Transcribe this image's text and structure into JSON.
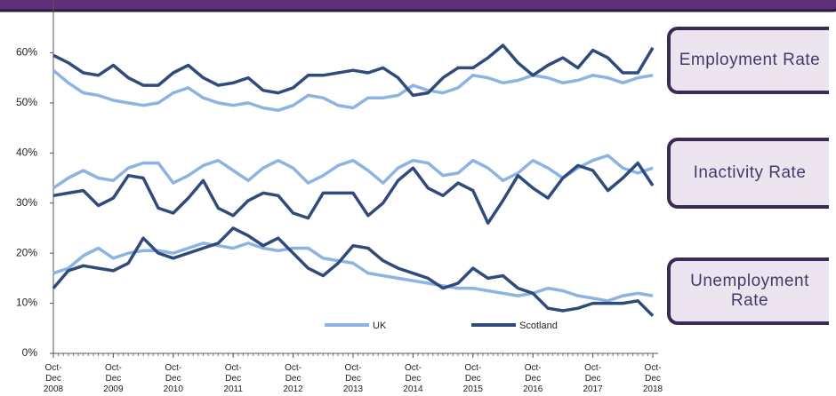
{
  "chart_data": {
    "type": "line",
    "categories": [
      "Oct-Dec 2008",
      null,
      null,
      null,
      "Oct-Dec 2009",
      null,
      null,
      null,
      "Oct-Dec 2010",
      null,
      null,
      null,
      "Oct-Dec 2011",
      null,
      null,
      null,
      "Oct-Dec 2012",
      null,
      null,
      null,
      "Oct-Dec 2013",
      null,
      null,
      null,
      "Oct-Dec 2014",
      null,
      null,
      null,
      "Oct-Dec 2015",
      null,
      null,
      null,
      "Oct-Dec 2016",
      null,
      null,
      null,
      "Oct-Dec 2017",
      null,
      null,
      null,
      "Oct-Dec 2018"
    ],
    "series": [
      {
        "name": "UK",
        "color": "#8db3e2",
        "values": [
          [
            56.5,
            54,
            52,
            51.5,
            50.5,
            50,
            49.5,
            50,
            52,
            53,
            51,
            50,
            49.5,
            50,
            49,
            48.5,
            49.5,
            51.5,
            51,
            49.5,
            49,
            51,
            51,
            51.5,
            53.5,
            52.5,
            52,
            53,
            55.5,
            55,
            54,
            54.5,
            55.5,
            55,
            54,
            54.5,
            55.5,
            55,
            54,
            55,
            55.5
          ],
          [
            33,
            35,
            36.5,
            35,
            34.5,
            37,
            38,
            38,
            34,
            35.5,
            37.5,
            38.5,
            36.5,
            34.5,
            37,
            38.5,
            37,
            34,
            35.5,
            37.5,
            38.5,
            36.5,
            34,
            37,
            38.5,
            38,
            35.5,
            36,
            38.5,
            37,
            34.5,
            36,
            38.5,
            37,
            35,
            37,
            38.5,
            39.5,
            37,
            36,
            37
          ],
          [
            16,
            17,
            19.5,
            21,
            19,
            20,
            20.5,
            20.5,
            20,
            21,
            22,
            21.5,
            21,
            22,
            21,
            20.5,
            21,
            21,
            19,
            18.5,
            18,
            16,
            15.5,
            15,
            14.5,
            14,
            13.5,
            13,
            13,
            12.5,
            12,
            11.5,
            12,
            13,
            12.5,
            11.5,
            11,
            10.5,
            11.5,
            12,
            11.5
          ]
        ]
      },
      {
        "name": "Scotland",
        "color": "#2f4b7c",
        "values": [
          [
            59.5,
            58,
            56,
            55.5,
            57.5,
            55,
            53.5,
            53.5,
            56,
            57.5,
            55,
            53.5,
            54,
            55,
            52.5,
            52,
            53,
            55.5,
            55.5,
            56,
            56.5,
            56,
            57,
            55,
            51.5,
            52,
            55,
            57,
            57,
            59,
            61.5,
            58,
            55.5,
            57.5,
            59,
            57,
            60.5,
            59,
            56,
            56,
            61
          ],
          [
            31.5,
            32,
            32.5,
            29.5,
            31,
            35.5,
            35,
            29,
            28,
            31,
            34.5,
            29,
            27.5,
            30.5,
            32,
            31.5,
            28,
            27,
            32,
            32,
            32,
            27.5,
            30,
            34.5,
            37,
            33,
            31.5,
            34,
            32.5,
            26,
            30.5,
            35.5,
            33,
            31,
            35,
            37.5,
            36.5,
            32.5,
            35,
            38,
            33.5
          ],
          [
            13,
            16.5,
            17.5,
            17,
            16.5,
            18,
            23,
            20,
            19,
            20,
            21,
            22,
            25,
            23.5,
            21.5,
            23,
            20,
            17,
            15.5,
            18,
            21.5,
            21,
            18.5,
            17,
            16,
            15,
            13,
            14,
            17,
            15,
            15.5,
            13,
            12,
            9,
            8.5,
            9,
            10,
            10,
            10,
            10.5,
            7.5
          ]
        ]
      }
    ],
    "annotations": [
      "Employment Rate",
      "Inactivity Rate",
      "Unemployment Rate"
    ],
    "ylim": [
      0,
      70
    ],
    "yticks": [
      {
        "value": 0,
        "label": "0%"
      },
      {
        "value": 10,
        "label": "10%"
      },
      {
        "value": 20,
        "label": "20%"
      },
      {
        "value": 30,
        "label": "30%"
      },
      {
        "value": 40,
        "label": "40%"
      },
      {
        "value": 50,
        "label": "50%"
      },
      {
        "value": 60,
        "label": "60%"
      }
    ]
  }
}
